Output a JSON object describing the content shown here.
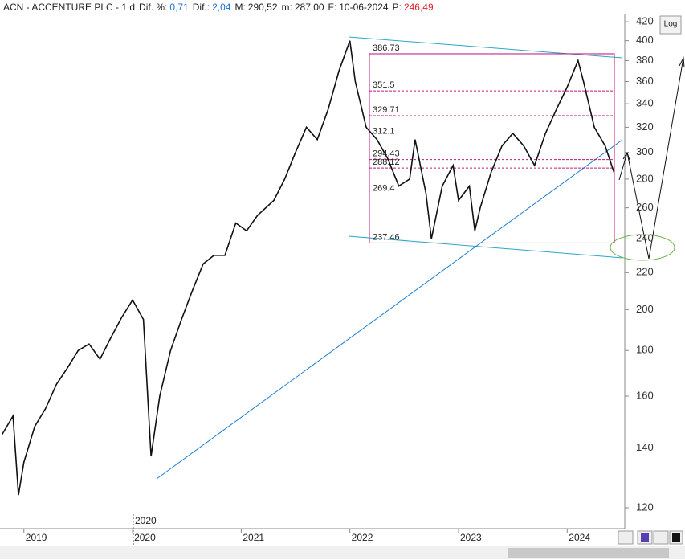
{
  "chart_data": {
    "type": "line",
    "title": "ACN - ACCENTURE PLC - 1 d",
    "stats": [
      {
        "label": "Dif. %:",
        "value": "0,71",
        "color": "#1e6fd9"
      },
      {
        "label": "Dif.:",
        "value": "2,04",
        "color": "#1e6fd9"
      },
      {
        "label": "M:",
        "value": "290,52",
        "color": "#222222"
      },
      {
        "label": "m:",
        "value": "287,00",
        "color": "#222222"
      },
      {
        "label": "F:",
        "value": "10-06-2024",
        "color": "#222222"
      },
      {
        "label": "P:",
        "value": "246,49",
        "color": "#e0202a"
      }
    ],
    "scale_button": "Log",
    "period_marker": "2020",
    "log_scale": true,
    "series": [
      {
        "name": "ACN",
        "color": "#111111",
        "x": [
          2018.8,
          2018.9,
          2018.95,
          2019.0,
          2019.1,
          2019.2,
          2019.3,
          2019.4,
          2019.5,
          2019.6,
          2019.7,
          2019.8,
          2019.9,
          2020.0,
          2020.1,
          2020.17,
          2020.25,
          2020.35,
          2020.45,
          2020.55,
          2020.65,
          2020.75,
          2020.85,
          2020.95,
          2021.05,
          2021.15,
          2021.3,
          2021.4,
          2021.5,
          2021.6,
          2021.7,
          2021.8,
          2021.9,
          2022.0,
          2022.05,
          2022.15,
          2022.25,
          2022.35,
          2022.45,
          2022.55,
          2022.6,
          2022.7,
          2022.75,
          2022.85,
          2022.95,
          2023.0,
          2023.1,
          2023.15,
          2023.2,
          2023.3,
          2023.4,
          2023.5,
          2023.6,
          2023.7,
          2023.8,
          2023.9,
          2024.0,
          2024.1,
          2024.15,
          2024.25,
          2024.35,
          2024.43
        ],
        "values": [
          145,
          152,
          124,
          135,
          148,
          155,
          165,
          172,
          180,
          183,
          176,
          186,
          196,
          205,
          195,
          137,
          160,
          180,
          195,
          210,
          225,
          230,
          230,
          250,
          245,
          255,
          265,
          280,
          300,
          320,
          310,
          335,
          370,
          400,
          360,
          320,
          310,
          295,
          275,
          280,
          310,
          270,
          240,
          275,
          290,
          265,
          275,
          245,
          260,
          285,
          305,
          315,
          305,
          290,
          315,
          335,
          355,
          380,
          360,
          320,
          305,
          285
        ]
      }
    ],
    "fib_levels": [
      386.73,
      351.5,
      329.71,
      312.1,
      294.43,
      288.12,
      269.4,
      237.46
    ],
    "fib_color": "#c0187c",
    "xlim": [
      2018.78,
      2024.53
    ],
    "xticks": [
      2019,
      2020,
      2021,
      2022,
      2023,
      2024
    ],
    "ylim": [
      113.7,
      428
    ],
    "yticks": [
      120,
      140,
      160,
      180,
      200,
      220,
      240,
      260,
      280,
      300,
      320,
      340,
      360,
      380,
      400,
      420
    ]
  }
}
